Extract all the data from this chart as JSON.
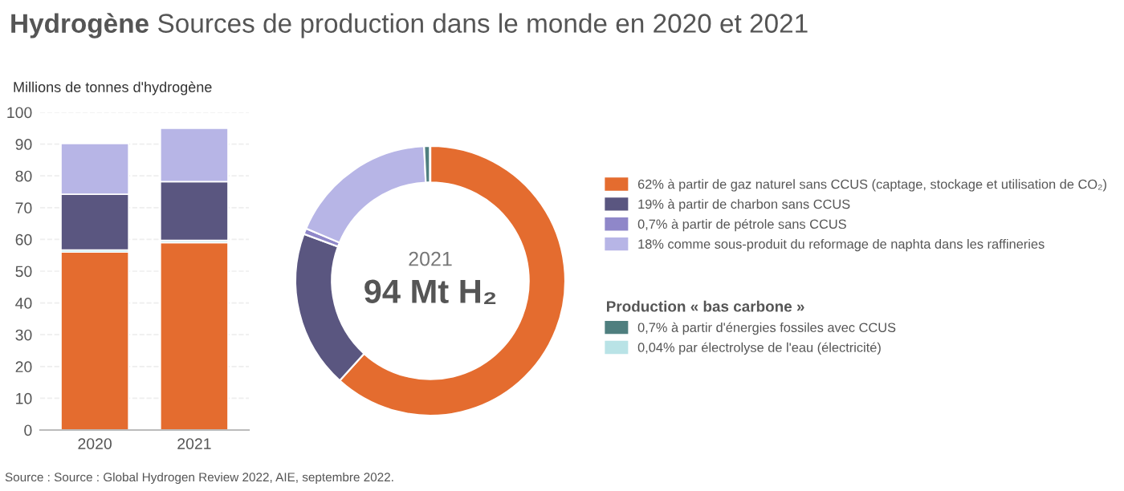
{
  "chart_data": [
    {
      "type": "bar",
      "title": "Hydrogène",
      "subtitle": "Sources de production dans le monde en 2020 et 2021",
      "ylabel": "Millions de tonnes d'hydrogène",
      "categories": [
        "2020",
        "2021"
      ],
      "stacked": true,
      "series": [
        {
          "color": "#e46c2f",
          "values": [
            56,
            59
          ]
        },
        {
          "color": "#b9e3e6",
          "values": [
            0.7,
            0.7
          ]
        },
        {
          "color": "#5a5680",
          "values": [
            17.5,
            18.5
          ]
        },
        {
          "color": "#b7b5e6",
          "values": [
            16,
            16.8
          ]
        }
      ],
      "ylim": [
        0,
        100
      ],
      "yticks": [
        0,
        10,
        20,
        30,
        40,
        50,
        60,
        70,
        80,
        90,
        100
      ],
      "grid": "y",
      "annotations": [
        "Source : Source : Global Hydrogen Review 2022, AIE, septembre 2022."
      ]
    },
    {
      "type": "donut",
      "categories": [
        "62% à partir de gaz naturel sans CCUS (captage, stockage et utilisation de CO₂)",
        "19% à partir de charbon sans CCUS",
        "0,7% à partir de pétrole sans CCUS",
        "18% comme sous-produit du reformage de naphta dans les raffineries",
        "0,7% à partir d'énergies fossiles avec CCUS",
        "0,04% par électrolyse de l'eau (électricité)"
      ],
      "values": [
        62,
        19,
        0.7,
        18,
        0.7,
        0.04
      ],
      "colors": [
        "#e46c2f",
        "#5a5680",
        "#8f87c9",
        "#b7b5e6",
        "#4f7f7f",
        "#b9e3e6"
      ],
      "legend": "right",
      "annotations": [
        "2021",
        "94 Mt H₂",
        "Production « bas carbone »"
      ]
    }
  ]
}
